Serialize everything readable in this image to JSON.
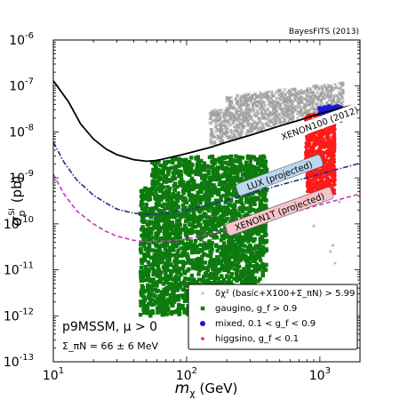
{
  "chart_data": {
    "type": "scatter",
    "credit": "BayesFITS (2013)",
    "xlabel": "m_χ (GeV)",
    "xlabel_parts": {
      "symbol": "m",
      "sub": "χ",
      "unit": "(GeV)"
    },
    "ylabel": "σ_p^SI (pb)",
    "ylabel_parts": {
      "symbol": "σ",
      "sub": "p",
      "sup": "SI",
      "unit": "(pb)"
    },
    "x_scale": "log",
    "y_scale": "log",
    "xlim": [
      10,
      2000
    ],
    "ylim": [
      1e-13,
      1e-06
    ],
    "x_ticks": [
      {
        "value": 10,
        "base": "10",
        "exp": "1"
      },
      {
        "value": 100,
        "base": "10",
        "exp": "2"
      },
      {
        "value": 1000,
        "base": "10",
        "exp": "3"
      }
    ],
    "y_ticks": [
      {
        "value": 1e-13,
        "base": "10",
        "exp": "-13"
      },
      {
        "value": 1e-12,
        "base": "10",
        "exp": "-12"
      },
      {
        "value": 1e-11,
        "base": "10",
        "exp": "-11"
      },
      {
        "value": 1e-10,
        "base": "10",
        "exp": "-10"
      },
      {
        "value": 1e-09,
        "base": "10",
        "exp": "-9"
      },
      {
        "value": 1e-08,
        "base": "10",
        "exp": "-8"
      },
      {
        "value": 1e-07,
        "base": "10",
        "exp": "-7"
      },
      {
        "value": 1e-06,
        "base": "10",
        "exp": "-6"
      }
    ],
    "model_label": "p9MSSM, μ > 0",
    "model_sub": "Σ_πN = 66 ± 6 MeV",
    "limits": [
      {
        "name": "XENON100 (2012)",
        "color": "#000000",
        "style": "solid",
        "label_at": [
          1000,
          1.5e-08
        ],
        "points": [
          [
            10,
            1.3e-07
          ],
          [
            13,
            4.5e-08
          ],
          [
            16,
            1.5e-08
          ],
          [
            20,
            7e-09
          ],
          [
            25,
            4.2e-09
          ],
          [
            30,
            3.2e-09
          ],
          [
            40,
            2.5e-09
          ],
          [
            50,
            2.3e-09
          ],
          [
            60,
            2.4e-09
          ],
          [
            80,
            2.9e-09
          ],
          [
            100,
            3.4e-09
          ],
          [
            150,
            4.6e-09
          ],
          [
            200,
            6e-09
          ],
          [
            300,
            8.5e-09
          ],
          [
            500,
            1.35e-08
          ],
          [
            700,
            1.8e-08
          ],
          [
            1000,
            2.5e-08
          ],
          [
            1500,
            3.4e-08
          ],
          [
            2000,
            4.2e-08
          ]
        ]
      },
      {
        "name": "LUX (projected)",
        "color": "#1f2f8f",
        "style": "dashdot",
        "label_at": [
          500,
          1.1e-09
        ],
        "points": [
          [
            10,
            6e-09
          ],
          [
            12,
            2.2e-09
          ],
          [
            15,
            9e-10
          ],
          [
            20,
            4.2e-10
          ],
          [
            25,
            2.8e-10
          ],
          [
            30,
            2.1e-10
          ],
          [
            40,
            1.7e-10
          ],
          [
            50,
            1.6e-10
          ],
          [
            70,
            1.7e-10
          ],
          [
            100,
            2e-10
          ],
          [
            150,
            2.6e-10
          ],
          [
            200,
            3.3e-10
          ],
          [
            300,
            4.6e-10
          ],
          [
            500,
            7e-10
          ],
          [
            1000,
            1.2e-09
          ],
          [
            2000,
            2.1e-09
          ]
        ]
      },
      {
        "name": "XENON1T (projected)",
        "color": "#c23ac2",
        "style": "dashed",
        "label_at": [
          500,
          1.8e-10
        ],
        "points": [
          [
            10,
            1.2e-09
          ],
          [
            12,
            4.5e-10
          ],
          [
            15,
            1.9e-10
          ],
          [
            20,
            1e-10
          ],
          [
            25,
            6.8e-11
          ],
          [
            30,
            5.4e-11
          ],
          [
            40,
            4.4e-11
          ],
          [
            50,
            4.1e-11
          ],
          [
            70,
            4.2e-11
          ],
          [
            100,
            4.7e-11
          ],
          [
            150,
            6e-11
          ],
          [
            200,
            7.4e-11
          ],
          [
            300,
            1e-10
          ],
          [
            500,
            1.5e-10
          ],
          [
            1000,
            2.6e-10
          ],
          [
            2000,
            4.5e-10
          ]
        ]
      }
    ],
    "regions": [
      {
        "name": "excluded",
        "color": "#a0a0a0",
        "marker": "x",
        "x_range": [
          150,
          1500
        ],
        "y_range": [
          3e-09,
          1.2e-07
        ],
        "count": 1200
      },
      {
        "name": "gaugino",
        "color": "#0e7a0e",
        "marker": "square",
        "x_range": [
          45,
          400
        ],
        "y_range": [
          1e-12,
          3e-09
        ],
        "count": 2600
      },
      {
        "name": "higgsino",
        "color": "#ff1a1a",
        "marker": "dot",
        "x_range": [
          780,
          1300
        ],
        "y_range": [
          4e-10,
          3e-08
        ],
        "count": 900
      },
      {
        "name": "mixed",
        "color": "#1a1ad6",
        "marker": "circle",
        "x_range": [
          1000,
          1550
        ],
        "y_range": [
          1.8e-08,
          3.6e-08
        ],
        "count": 60
      }
    ]
  },
  "legend": {
    "entries": [
      {
        "key": "excluded",
        "marker": "x",
        "color": "#a0a0a0",
        "label": "δχ² (basic+X100+Σ_πN) > 5.99"
      },
      {
        "key": "gaugino",
        "marker": "square",
        "color": "#0e7a0e",
        "label": "gaugino, g_f > 0.9"
      },
      {
        "key": "mixed",
        "marker": "circle",
        "color": "#1a1ad6",
        "label": "mixed, 0.1 < g_f < 0.9"
      },
      {
        "key": "higgsino",
        "marker": "dot",
        "color": "#ff1a1a",
        "label": "higgsino, g_f < 0.1"
      }
    ]
  }
}
